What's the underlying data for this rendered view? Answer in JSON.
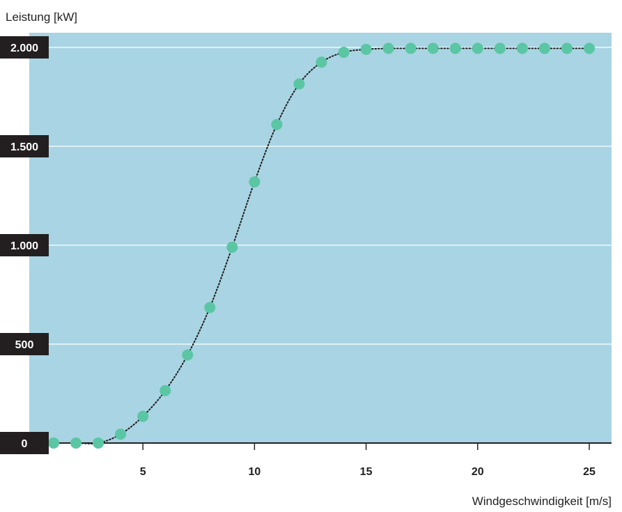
{
  "chart_data": {
    "type": "scatter",
    "title": "",
    "ylabel": "Leistung [kW]",
    "xlabel": "Windgeschwindigkeit [m/s]",
    "xlim": [
      1,
      26
    ],
    "ylim": [
      0,
      2000
    ],
    "x_ticks": [
      5,
      10,
      15,
      20,
      25
    ],
    "x_tick_labels": [
      "5",
      "10",
      "15",
      "20",
      "25"
    ],
    "y_ticks": [
      0,
      500,
      1000,
      1500,
      2000
    ],
    "y_tick_labels": [
      "0",
      "500",
      "1.000",
      "1.500",
      "2.000"
    ],
    "grid": "horizontal",
    "legend": "none",
    "colors": {
      "plot_background": "#a9d4e3",
      "marker": "#5ac6a4",
      "line": "#1a1a1a",
      "gridline": "#ffffff",
      "axis_line": "#222222",
      "tick_label_box": "#231f20"
    },
    "series": [
      {
        "x": [
          1,
          2,
          3,
          4,
          5,
          6,
          7,
          8,
          9,
          10,
          11,
          12,
          13,
          14,
          15,
          16,
          17,
          18,
          19,
          20,
          21,
          22,
          23,
          24,
          25
        ],
        "y": [
          0,
          0,
          0,
          45,
          135,
          265,
          445,
          685,
          990,
          1320,
          1610,
          1815,
          1925,
          1975,
          1990,
          1995,
          1995,
          1995,
          1995,
          1995,
          1995,
          1995,
          1995,
          1995,
          1995
        ]
      }
    ]
  }
}
